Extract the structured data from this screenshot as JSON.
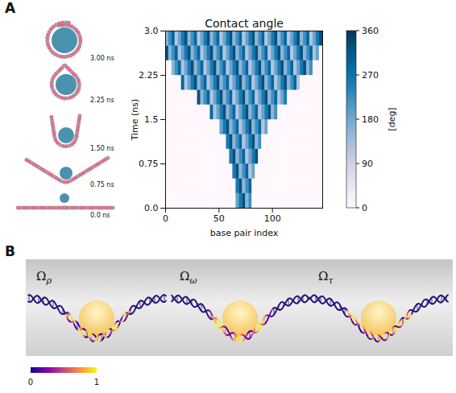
{
  "panel_labels": [
    "A",
    "B"
  ],
  "snapshots": [
    "3.00 ns",
    "2.25 ns",
    "1.50 ns",
    "0.75 ns",
    "0.0 ns"
  ],
  "chart_data": {
    "type": "heatmap",
    "title": "Contact angle",
    "x_label": "base pair index",
    "y_label": "Time (ns)",
    "xlim": [
      0,
      147
    ],
    "xticks": [
      0,
      50,
      100
    ],
    "ylim": [
      0,
      3
    ],
    "yticks": [
      {
        "value": 0,
        "label": "0.0"
      },
      0.75,
      1.5,
      2.25,
      {
        "value": 3,
        "label": "3.0"
      }
    ],
    "x": [
      0,
      3,
      6,
      9,
      12,
      15,
      18,
      21,
      24,
      27,
      30,
      33,
      36,
      39,
      42,
      45,
      48,
      51,
      54,
      57,
      60,
      63,
      66,
      69,
      72,
      75,
      78,
      81,
      84,
      87,
      90,
      93,
      96,
      99,
      102,
      105,
      108,
      111,
      114,
      117,
      120,
      123,
      126,
      129,
      132,
      135,
      138,
      141,
      144
    ],
    "y": [
      0,
      0.25,
      0.5,
      0.75,
      1,
      1.25,
      1.5,
      1.75,
      2,
      2.25,
      2.5,
      2.75
    ],
    "z": [
      [
        0,
        0,
        0,
        0,
        0,
        0,
        0,
        0,
        0,
        0,
        0,
        0,
        0,
        0,
        0,
        0,
        0,
        0,
        0,
        0,
        0,
        0,
        189,
        257,
        326,
        155,
        223,
        0,
        0,
        0,
        0,
        0,
        0,
        0,
        0,
        0,
        0,
        0,
        0,
        0,
        0,
        0,
        0,
        0,
        0,
        0,
        0,
        0,
        0
      ],
      [
        0,
        0,
        0,
        0,
        0,
        0,
        0,
        0,
        0,
        0,
        0,
        0,
        0,
        0,
        0,
        0,
        0,
        0,
        0,
        0,
        0,
        0,
        257,
        326,
        155,
        223,
        291,
        0,
        0,
        0,
        0,
        0,
        0,
        0,
        0,
        0,
        0,
        0,
        0,
        0,
        0,
        0,
        0,
        0,
        0,
        0,
        0,
        0,
        0
      ],
      [
        0,
        0,
        0,
        0,
        0,
        0,
        0,
        0,
        0,
        0,
        0,
        0,
        0,
        0,
        0,
        0,
        0,
        0,
        0,
        0,
        0,
        257,
        326,
        155,
        223,
        291,
        120,
        189,
        0,
        0,
        0,
        0,
        0,
        0,
        0,
        0,
        0,
        0,
        0,
        0,
        0,
        0,
        0,
        0,
        0,
        0,
        0,
        0,
        0
      ],
      [
        0,
        0,
        0,
        0,
        0,
        0,
        0,
        0,
        0,
        0,
        0,
        0,
        0,
        0,
        0,
        0,
        0,
        0,
        0,
        0,
        257,
        326,
        155,
        223,
        291,
        120,
        189,
        257,
        326,
        0,
        0,
        0,
        0,
        0,
        0,
        0,
        0,
        0,
        0,
        0,
        0,
        0,
        0,
        0,
        0,
        0,
        0,
        0,
        0
      ],
      [
        0,
        0,
        0,
        0,
        0,
        0,
        0,
        0,
        0,
        0,
        0,
        0,
        0,
        0,
        0,
        0,
        0,
        0,
        0,
        257,
        326,
        155,
        223,
        291,
        120,
        189,
        257,
        326,
        155,
        223,
        0,
        0,
        0,
        0,
        0,
        0,
        0,
        0,
        0,
        0,
        0,
        0,
        0,
        0,
        0,
        0,
        0,
        0,
        0
      ],
      [
        0,
        0,
        0,
        0,
        0,
        0,
        0,
        0,
        0,
        0,
        0,
        0,
        0,
        0,
        0,
        0,
        0,
        189,
        257,
        326,
        155,
        223,
        291,
        120,
        189,
        257,
        326,
        155,
        223,
        291,
        120,
        189,
        0,
        0,
        0,
        0,
        0,
        0,
        0,
        0,
        0,
        0,
        0,
        0,
        0,
        0,
        0,
        0,
        0
      ],
      [
        0,
        0,
        0,
        0,
        0,
        0,
        0,
        0,
        0,
        0,
        0,
        0,
        0,
        0,
        291,
        120,
        189,
        257,
        326,
        155,
        223,
        291,
        120,
        189,
        257,
        326,
        155,
        223,
        291,
        120,
        189,
        257,
        326,
        155,
        223,
        0,
        0,
        0,
        0,
        0,
        0,
        0,
        0,
        0,
        0,
        0,
        0,
        0,
        0
      ],
      [
        0,
        0,
        0,
        0,
        0,
        0,
        0,
        0,
        0,
        0,
        326,
        155,
        223,
        291,
        120,
        189,
        257,
        326,
        155,
        223,
        291,
        120,
        189,
        257,
        326,
        155,
        223,
        291,
        120,
        189,
        257,
        326,
        155,
        223,
        291,
        120,
        189,
        257,
        0,
        0,
        0,
        0,
        0,
        0,
        0,
        0,
        0,
        0,
        0
      ],
      [
        0,
        0,
        0,
        0,
        0,
        291,
        120,
        189,
        257,
        326,
        155,
        223,
        291,
        120,
        189,
        257,
        326,
        155,
        223,
        291,
        120,
        189,
        257,
        326,
        155,
        223,
        291,
        120,
        189,
        257,
        326,
        155,
        223,
        291,
        120,
        189,
        257,
        326,
        155,
        223,
        291,
        120,
        0,
        0,
        0,
        0,
        0,
        0,
        0
      ],
      [
        0,
        0,
        155,
        223,
        291,
        120,
        189,
        257,
        326,
        155,
        223,
        291,
        120,
        189,
        257,
        326,
        155,
        223,
        291,
        120,
        189,
        257,
        326,
        155,
        223,
        291,
        120,
        189,
        257,
        326,
        155,
        223,
        291,
        120,
        189,
        257,
        326,
        155,
        223,
        291,
        120,
        189,
        257,
        326,
        155,
        223,
        0,
        0,
        0
      ],
      [
        326,
        155,
        223,
        291,
        120,
        189,
        257,
        326,
        155,
        223,
        291,
        120,
        189,
        257,
        326,
        155,
        223,
        291,
        120,
        189,
        257,
        326,
        155,
        223,
        291,
        120,
        189,
        257,
        326,
        155,
        223,
        291,
        120,
        189,
        257,
        326,
        155,
        223,
        291,
        120,
        189,
        257,
        326,
        155,
        223,
        291,
        120,
        189,
        0
      ],
      [
        155,
        223,
        291,
        120,
        189,
        257,
        326,
        155,
        223,
        291,
        120,
        189,
        257,
        326,
        155,
        223,
        291,
        120,
        189,
        257,
        326,
        155,
        223,
        291,
        120,
        189,
        257,
        326,
        155,
        223,
        291,
        120,
        189,
        257,
        326,
        155,
        223,
        291,
        120,
        189,
        257,
        326,
        155,
        223,
        291,
        120,
        189,
        257,
        326
      ]
    ],
    "color_label": "[deg]",
    "color_range": [
      0,
      360
    ],
    "color_ticks": [
      0,
      90,
      180,
      270,
      360
    ]
  },
  "panel_B": {
    "titles": [
      {
        "symbol": "Ω",
        "subscript": "ρ"
      },
      {
        "symbol": "Ω",
        "subscript": "ω"
      },
      {
        "symbol": "Ω",
        "subscript": "τ"
      }
    ],
    "color_range": [
      0,
      1
    ],
    "color_ticks": [
      0,
      1
    ]
  }
}
